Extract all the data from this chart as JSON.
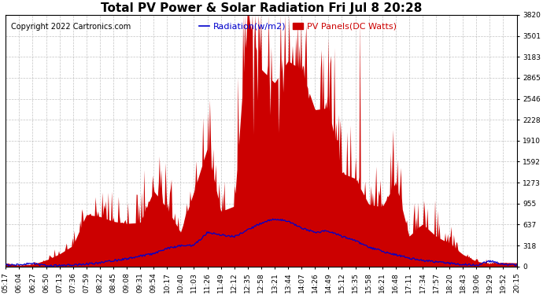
{
  "title": "Total PV Power & Solar Radiation Fri Jul 8 20:28",
  "copyright": "Copyright 2022 Cartronics.com",
  "legend_radiation": "Radiation(w/m2)",
  "legend_pv": "PV Panels(DC Watts)",
  "ymin": 0.0,
  "ymax": 3819.8,
  "yticks": [
    0.0,
    318.3,
    636.6,
    954.9,
    1273.3,
    1591.6,
    1909.9,
    2228.2,
    2546.5,
    2864.8,
    3183.1,
    3501.4,
    3819.8
  ],
  "xtick_labels": [
    "05:17",
    "06:04",
    "06:27",
    "06:50",
    "07:13",
    "07:36",
    "07:59",
    "08:22",
    "08:45",
    "09:08",
    "09:31",
    "09:54",
    "10:17",
    "10:40",
    "11:03",
    "11:26",
    "11:49",
    "12:12",
    "12:35",
    "12:58",
    "13:21",
    "13:44",
    "14:07",
    "14:26",
    "14:49",
    "15:12",
    "15:35",
    "15:58",
    "16:21",
    "16:48",
    "17:11",
    "17:34",
    "17:57",
    "18:20",
    "18:43",
    "19:06",
    "19:29",
    "19:52",
    "20:15"
  ],
  "bg_color": "#ffffff",
  "grid_color": "#aaaaaa",
  "pv_fill_color": "#cc0000",
  "radiation_line_color": "#0000cc",
  "title_fontsize": 11,
  "tick_fontsize": 6.5,
  "legend_fontsize": 8,
  "copyright_fontsize": 7
}
